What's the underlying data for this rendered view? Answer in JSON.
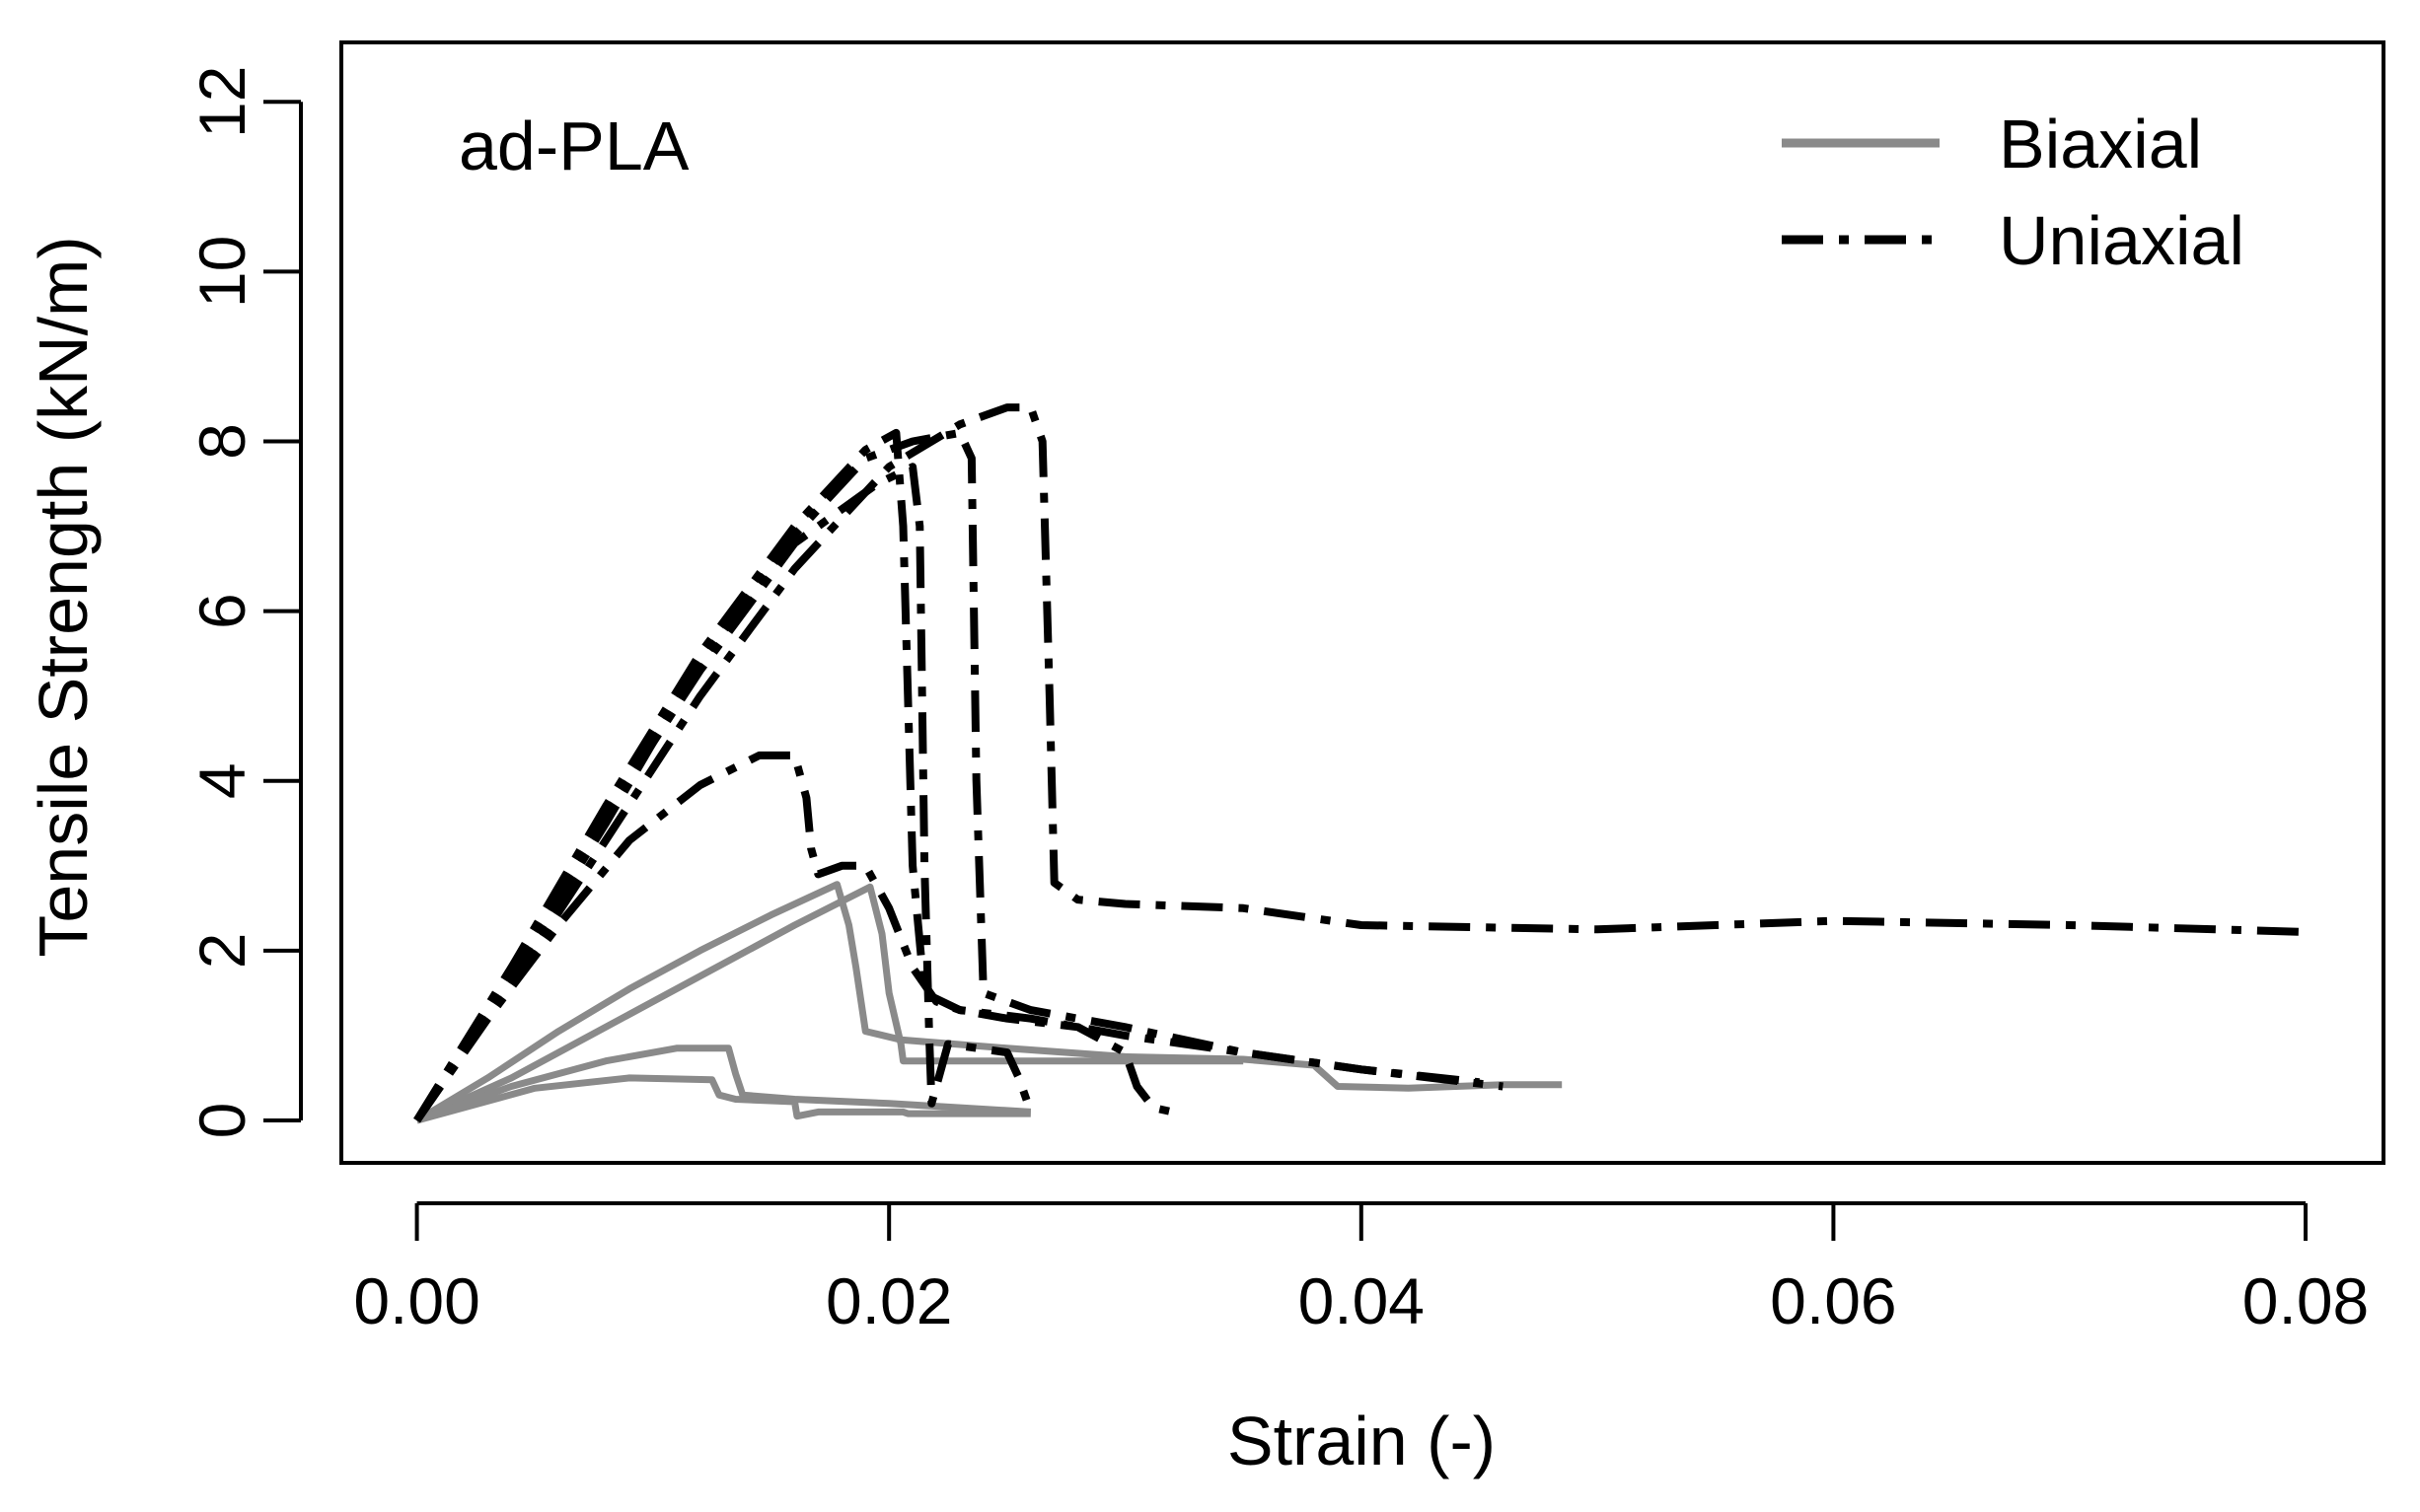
{
  "chart_data": {
    "type": "line",
    "title": "",
    "panel_label": "ad-PLA",
    "xlabel": "Strain (-)",
    "ylabel": "Tensile Strength  (kN/m)",
    "xlim": [
      -0.0032,
      0.0833
    ],
    "ylim": [
      -0.5,
      12.7
    ],
    "x_ticks": [
      0.0,
      0.02,
      0.04,
      0.06,
      0.08
    ],
    "x_tick_labels": [
      "0.00",
      "0.02",
      "0.04",
      "0.06",
      "0.08"
    ],
    "y_ticks": [
      0,
      2,
      4,
      6,
      8,
      10,
      12
    ],
    "y_tick_labels": [
      "0",
      "2",
      "4",
      "6",
      "8",
      "10",
      "12"
    ],
    "grid": false,
    "legend_position": "top-right",
    "legend": [
      {
        "label": "Biaxial",
        "style": "solid",
        "color": "#8a8a8a"
      },
      {
        "label": "Uniaxial",
        "style": "dashdot",
        "color": "#000000"
      }
    ],
    "series": [
      {
        "name": "Biaxial",
        "group": "Biaxial",
        "x": [
          0,
          0.003,
          0.006,
          0.009,
          0.012,
          0.015,
          0.0178,
          0.0183,
          0.0186,
          0.019,
          0.0205,
          0.025,
          0.03,
          0.035,
          0.038,
          0.039,
          0.042,
          0.046,
          0.0485
        ],
        "y": [
          0,
          0.5,
          1.05,
          1.55,
          2.0,
          2.42,
          2.78,
          2.3,
          1.8,
          1.05,
          0.95,
          0.85,
          0.75,
          0.72,
          0.65,
          0.4,
          0.38,
          0.42,
          0.42
        ]
      },
      {
        "name": "Biaxial",
        "group": "Biaxial",
        "x": [
          0,
          0.004,
          0.008,
          0.012,
          0.016,
          0.0192,
          0.0197,
          0.02,
          0.0205,
          0.0206,
          0.025,
          0.03,
          0.035
        ],
        "y": [
          0,
          0.5,
          1.1,
          1.7,
          2.3,
          2.75,
          2.2,
          1.5,
          0.9,
          0.7,
          0.7,
          0.7,
          0.7
        ]
      },
      {
        "name": "Biaxial",
        "group": "Biaxial",
        "x": [
          0,
          0.004,
          0.008,
          0.011,
          0.0132,
          0.0135,
          0.0138,
          0.016,
          0.02,
          0.026
        ],
        "y": [
          0,
          0.4,
          0.7,
          0.85,
          0.85,
          0.55,
          0.3,
          0.25,
          0.2,
          0.1
        ]
      },
      {
        "name": "Biaxial",
        "group": "Biaxial",
        "x": [
          0,
          0.005,
          0.009,
          0.0125,
          0.0128,
          0.0135,
          0.016,
          0.0161,
          0.017,
          0.0206,
          0.0208,
          0.026
        ],
        "y": [
          0,
          0.38,
          0.5,
          0.48,
          0.3,
          0.25,
          0.22,
          0.05,
          0.1,
          0.1,
          0.08,
          0.08
        ]
      },
      {
        "name": "Uniaxial",
        "group": "Uniaxial",
        "x": [
          0,
          0.004,
          0.008,
          0.012,
          0.016,
          0.02,
          0.023,
          0.025,
          0.026,
          0.0265,
          0.0268,
          0.027,
          0.028,
          0.03,
          0.035,
          0.04,
          0.05,
          0.06,
          0.07,
          0.08
        ],
        "y": [
          0,
          1.6,
          3.3,
          5.0,
          6.5,
          7.7,
          8.2,
          8.4,
          8.4,
          8.0,
          5.0,
          2.8,
          2.6,
          2.55,
          2.5,
          2.3,
          2.25,
          2.35,
          2.3,
          2.22
        ]
      },
      {
        "name": "Uniaxial",
        "group": "Uniaxial",
        "x": [
          0,
          0.004,
          0.008,
          0.012,
          0.016,
          0.019,
          0.021,
          0.023,
          0.0235,
          0.0237,
          0.024,
          0.026,
          0.03,
          0.035,
          0.04,
          0.045
        ],
        "y": [
          0,
          1.7,
          3.5,
          5.4,
          6.9,
          7.8,
          8.0,
          8.1,
          7.8,
          4.0,
          1.5,
          1.3,
          1.1,
          0.8,
          0.6,
          0.45
        ]
      },
      {
        "name": "Uniaxial",
        "group": "Uniaxial",
        "x": [
          0,
          0.004,
          0.008,
          0.012,
          0.016,
          0.019,
          0.0203,
          0.0206,
          0.021,
          0.0215,
          0.023,
          0.026,
          0.03,
          0.035,
          0.04,
          0.046
        ],
        "y": [
          0,
          1.8,
          3.7,
          5.5,
          7.0,
          7.9,
          8.1,
          7.0,
          3.0,
          1.5,
          1.3,
          1.2,
          1.0,
          0.8,
          0.6,
          0.4
        ]
      },
      {
        "name": "Uniaxial",
        "group": "Uniaxial",
        "x": [
          0,
          0.004,
          0.008,
          0.012,
          0.016,
          0.0195,
          0.021,
          0.0213,
          0.0215,
          0.0217,
          0.0218,
          0.0225,
          0.025,
          0.0255,
          0.026
        ],
        "y": [
          0,
          1.8,
          3.6,
          5.3,
          6.8,
          7.5,
          7.7,
          7.0,
          3.0,
          1.0,
          0.2,
          0.9,
          0.8,
          0.5,
          0.1
        ]
      },
      {
        "name": "Uniaxial",
        "group": "Uniaxial",
        "x": [
          0,
          0.003,
          0.006,
          0.009,
          0.012,
          0.0145,
          0.016,
          0.0165,
          0.0167,
          0.017,
          0.018,
          0.019,
          0.02,
          0.021,
          0.022,
          0.023,
          0.025,
          0.028,
          0.03,
          0.0305,
          0.0312,
          0.032
        ],
        "y": [
          0,
          1.2,
          2.3,
          3.3,
          3.95,
          4.3,
          4.3,
          3.8,
          3.2,
          2.9,
          3.0,
          3.0,
          2.5,
          1.8,
          1.4,
          1.3,
          1.2,
          1.1,
          0.8,
          0.4,
          0.15,
          0.1
        ]
      }
    ]
  }
}
